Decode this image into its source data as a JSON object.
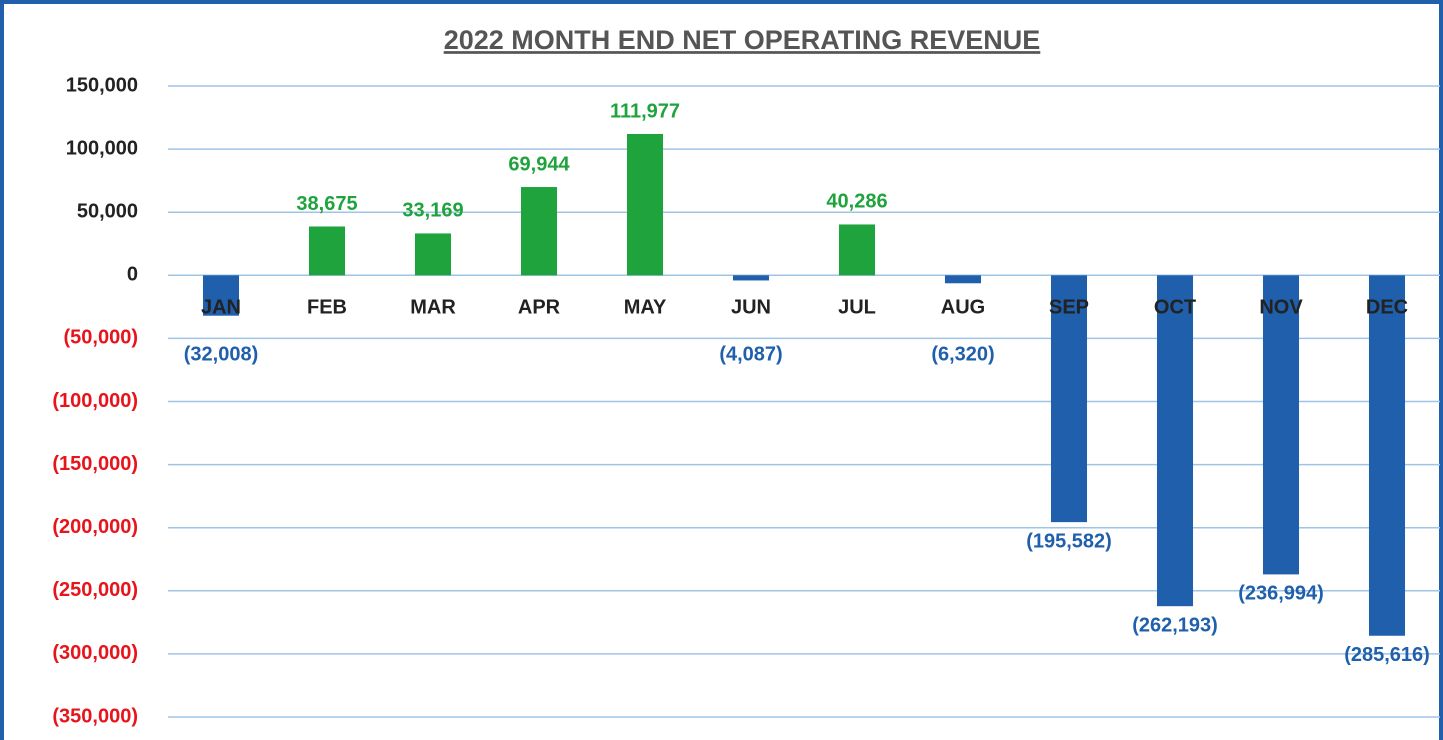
{
  "chart_data": {
    "type": "bar",
    "title": "2022 MONTH END NET OPERATING REVENUE",
    "categories": [
      "JAN",
      "FEB",
      "MAR",
      "APR",
      "MAY",
      "JUN",
      "JUL",
      "AUG",
      "SEP",
      "OCT",
      "NOV",
      "DEC"
    ],
    "values": [
      -32008,
      38675,
      33169,
      69944,
      111977,
      -4087,
      40286,
      -6320,
      -195582,
      -262193,
      -236994,
      -285616
    ],
    "value_labels": [
      "(32,008)",
      "38,675",
      "33,169",
      "69,944",
      "111,977",
      "(4,087)",
      "40,286",
      "(6,320)",
      "(195,582)",
      "(262,193)",
      "(236,994)",
      "(285,616)"
    ],
    "positive_color": "#1fa33d",
    "negative_color": "#1f5fab",
    "negative_tick_color": "#e8141b",
    "ylim": [
      -350000,
      150000
    ],
    "yticks": [
      {
        "value": 150000,
        "label": "150,000"
      },
      {
        "value": 100000,
        "label": "100,000"
      },
      {
        "value": 50000,
        "label": "50,000"
      },
      0,
      {
        "value": -50000,
        "label": "(50,000)"
      },
      {
        "value": -100000,
        "label": "(100,000)"
      },
      {
        "value": -150000,
        "label": "(150,000)"
      },
      {
        "value": -200000,
        "label": "(200,000)"
      },
      {
        "value": -250000,
        "label": "(250,000)"
      },
      {
        "value": -300000,
        "label": "(300,000)"
      },
      {
        "value": -350000,
        "label": "(350,000)"
      }
    ],
    "grid": true
  }
}
